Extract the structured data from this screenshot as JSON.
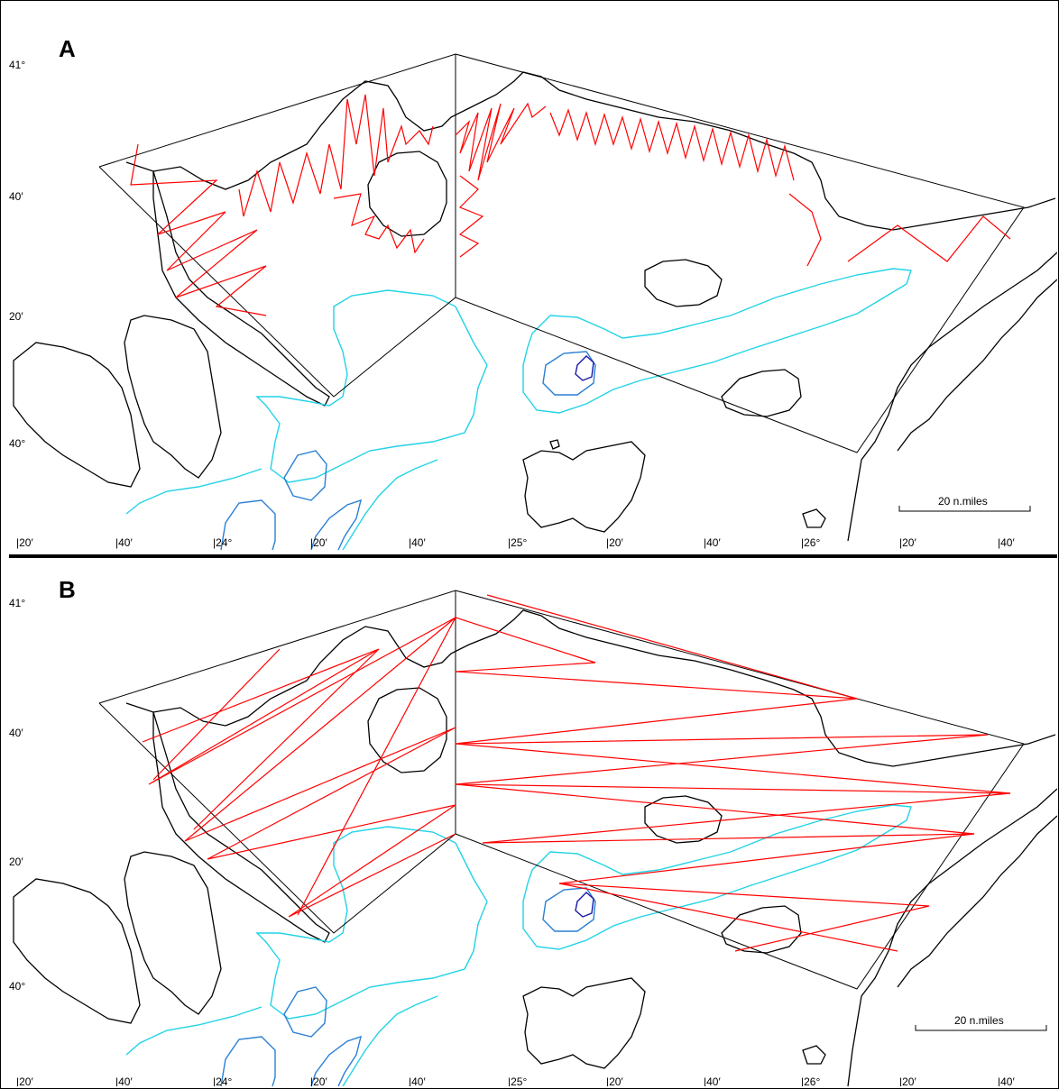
{
  "panels": [
    {
      "letter": "A",
      "lat_labels": [
        "41°",
        "40′",
        "20′",
        "40°"
      ],
      "lon_labels": [
        "|20′",
        "|40′",
        "|24°",
        "|20′",
        "|40′",
        "|25°",
        "|20′",
        "|40′",
        "|26°",
        "|20′",
        "|40′"
      ],
      "scale_label": "20 n.miles",
      "survey_pattern": "zigzag"
    },
    {
      "letter": "B",
      "lat_labels": [
        "41°",
        "40′",
        "20′",
        "40°"
      ],
      "lon_labels": [
        "|20′",
        "|40′",
        "|24°",
        "|20′",
        "|40′",
        "|25°",
        "|20′",
        "|40′",
        "|26°",
        "|20′",
        "|40′"
      ],
      "scale_label": "20 n.miles",
      "survey_pattern": "long-transects"
    }
  ],
  "colors": {
    "coastline": "#000000",
    "transects": "#ff0000",
    "isobath_shallow": "#22d3e6",
    "isobath_mid": "#2a7fd4",
    "isobath_deep": "#1a1aa8"
  }
}
